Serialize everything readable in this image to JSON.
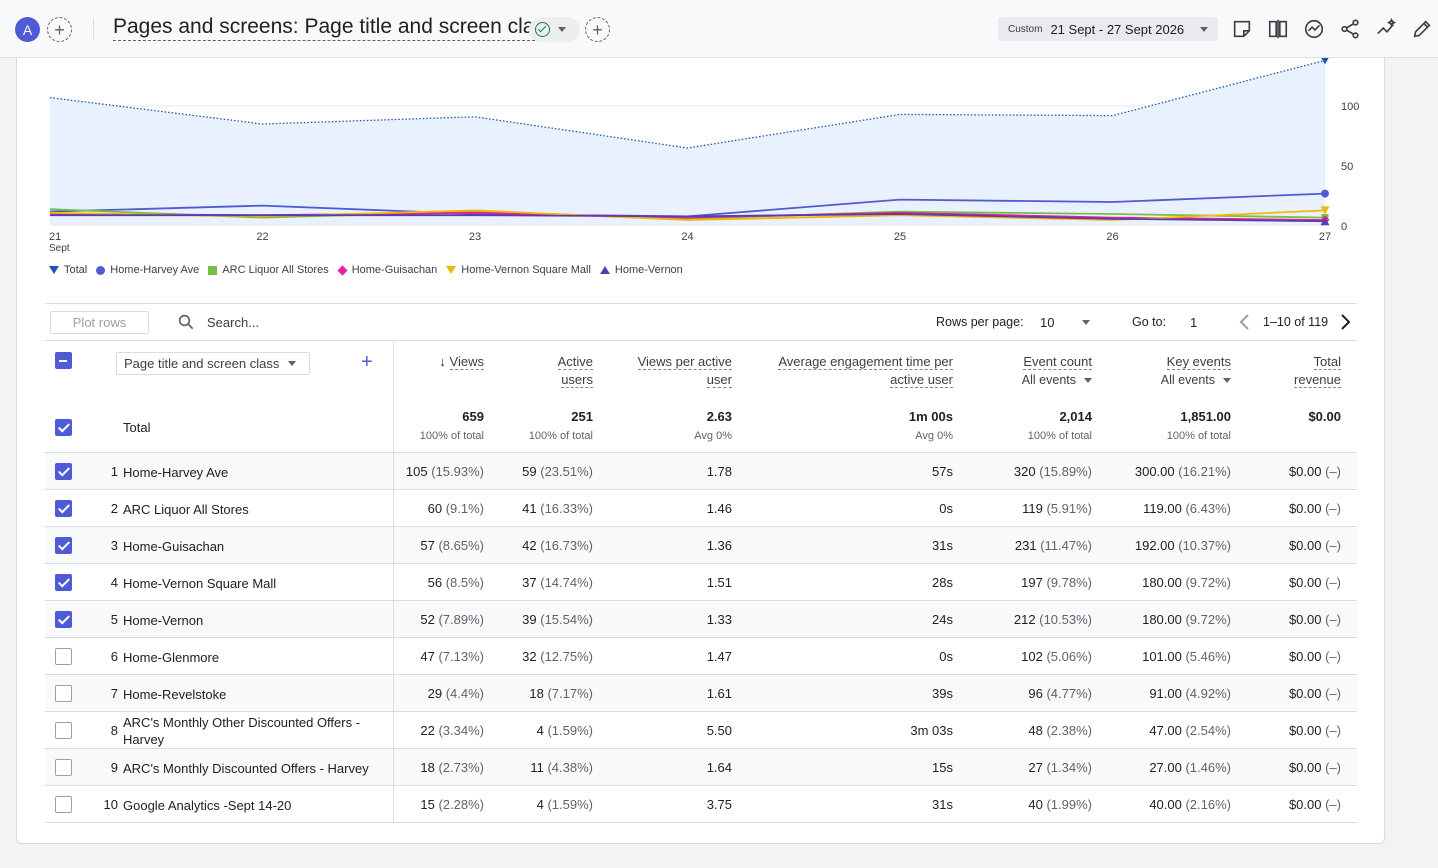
{
  "topbar": {
    "avatar_letter": "A",
    "title": "Pages and screens: Page title and screen class",
    "date_range_label": "Custom",
    "date_range_value": "21 Sept - 27 Sept 2026"
  },
  "chart_data": {
    "type": "line",
    "x": [
      "21",
      "22",
      "23",
      "24",
      "25",
      "26",
      "27"
    ],
    "x_sublabel": "Sept",
    "y_ticks": [
      "100",
      "50",
      "0"
    ],
    "ylim": [
      0,
      140
    ],
    "grid": true,
    "legend_position": "bottom-left",
    "series": [
      {
        "name": "Total",
        "color": "#1a56b0",
        "area": true,
        "values": [
          107,
          85,
          91,
          65,
          93,
          92,
          138
        ]
      },
      {
        "name": "Home-Harvey Ave",
        "color": "#4f5bd5",
        "values": [
          12,
          17,
          10,
          8,
          22,
          20,
          27
        ]
      },
      {
        "name": "ARC Liquor All Stores",
        "color": "#76c043",
        "values": [
          14,
          7,
          12,
          6,
          12,
          10,
          7
        ]
      },
      {
        "name": "Home-Guisachan",
        "color": "#e0239c",
        "values": [
          10,
          9,
          11,
          7,
          11,
          7,
          5
        ]
      },
      {
        "name": "Home-Vernon Square Mall",
        "color": "#f5b800",
        "values": [
          11,
          8,
          13,
          5,
          9,
          5,
          13
        ]
      },
      {
        "name": "Home-Vernon",
        "color": "#5b3ab3",
        "values": [
          9,
          9,
          9,
          8,
          10,
          6,
          4
        ]
      }
    ]
  },
  "toolbar": {
    "plot_rows_label": "Plot rows",
    "search_placeholder": "Search...",
    "rows_per_page_label": "Rows per page:",
    "rows_per_page_value": "10",
    "goto_label": "Go to:",
    "goto_value": "1",
    "pagination_info": "1–10 of 119"
  },
  "table": {
    "dimension_label": "Page title and screen class",
    "columns": [
      {
        "l1": "Views",
        "l2": "",
        "sortable": true
      },
      {
        "l1": "Active",
        "l2": "users"
      },
      {
        "l1": "Views per active",
        "l2": "user"
      },
      {
        "l1": "Average engagement time per",
        "l2": "active user"
      },
      {
        "l1": "Event count",
        "l2": "All events"
      },
      {
        "l1": "Key events",
        "l2": "All events"
      },
      {
        "l1": "Total",
        "l2": "revenue"
      }
    ],
    "total": {
      "label": "Total",
      "values": [
        "659",
        "251",
        "2.63",
        "1m 00s",
        "2,014",
        "1,851.00",
        "$0.00"
      ],
      "subs": [
        "100% of total",
        "100% of total",
        "Avg 0%",
        "Avg 0%",
        "100% of total",
        "100% of total",
        ""
      ]
    },
    "rows": [
      {
        "idx": "1",
        "name": "Home-Harvey Ave",
        "checked": true,
        "cells": [
          [
            "105",
            "(15.93%)"
          ],
          [
            "59",
            "(23.51%)"
          ],
          [
            "1.78",
            ""
          ],
          [
            "57s",
            ""
          ],
          [
            "320",
            "(15.89%)"
          ],
          [
            "300.00",
            "(16.21%)"
          ],
          [
            "$0.00",
            "(–)"
          ]
        ]
      },
      {
        "idx": "2",
        "name": "ARC Liquor All Stores",
        "checked": true,
        "cells": [
          [
            "60",
            "(9.1%)"
          ],
          [
            "41",
            "(16.33%)"
          ],
          [
            "1.46",
            ""
          ],
          [
            "0s",
            ""
          ],
          [
            "119",
            "(5.91%)"
          ],
          [
            "119.00",
            "(6.43%)"
          ],
          [
            "$0.00",
            "(–)"
          ]
        ]
      },
      {
        "idx": "3",
        "name": "Home-Guisachan",
        "checked": true,
        "cells": [
          [
            "57",
            "(8.65%)"
          ],
          [
            "42",
            "(16.73%)"
          ],
          [
            "1.36",
            ""
          ],
          [
            "31s",
            ""
          ],
          [
            "231",
            "(11.47%)"
          ],
          [
            "192.00",
            "(10.37%)"
          ],
          [
            "$0.00",
            "(–)"
          ]
        ]
      },
      {
        "idx": "4",
        "name": "Home-Vernon Square Mall",
        "checked": true,
        "cells": [
          [
            "56",
            "(8.5%)"
          ],
          [
            "37",
            "(14.74%)"
          ],
          [
            "1.51",
            ""
          ],
          [
            "28s",
            ""
          ],
          [
            "197",
            "(9.78%)"
          ],
          [
            "180.00",
            "(9.72%)"
          ],
          [
            "$0.00",
            "(–)"
          ]
        ]
      },
      {
        "idx": "5",
        "name": "Home-Vernon",
        "checked": true,
        "cells": [
          [
            "52",
            "(7.89%)"
          ],
          [
            "39",
            "(15.54%)"
          ],
          [
            "1.33",
            ""
          ],
          [
            "24s",
            ""
          ],
          [
            "212",
            "(10.53%)"
          ],
          [
            "180.00",
            "(9.72%)"
          ],
          [
            "$0.00",
            "(–)"
          ]
        ]
      },
      {
        "idx": "6",
        "name": "Home-Glenmore",
        "checked": false,
        "cells": [
          [
            "47",
            "(7.13%)"
          ],
          [
            "32",
            "(12.75%)"
          ],
          [
            "1.47",
            ""
          ],
          [
            "0s",
            ""
          ],
          [
            "102",
            "(5.06%)"
          ],
          [
            "101.00",
            "(5.46%)"
          ],
          [
            "$0.00",
            "(–)"
          ]
        ]
      },
      {
        "idx": "7",
        "name": "Home-Revelstoke",
        "checked": false,
        "cells": [
          [
            "29",
            "(4.4%)"
          ],
          [
            "18",
            "(7.17%)"
          ],
          [
            "1.61",
            ""
          ],
          [
            "39s",
            ""
          ],
          [
            "96",
            "(4.77%)"
          ],
          [
            "91.00",
            "(4.92%)"
          ],
          [
            "$0.00",
            "(–)"
          ]
        ]
      },
      {
        "idx": "8",
        "name": "ARC's Monthly Other Discounted Offers - Harvey",
        "checked": false,
        "cells": [
          [
            "22",
            "(3.34%)"
          ],
          [
            "4",
            "(1.59%)"
          ],
          [
            "5.50",
            ""
          ],
          [
            "3m 03s",
            ""
          ],
          [
            "48",
            "(2.38%)"
          ],
          [
            "47.00",
            "(2.54%)"
          ],
          [
            "$0.00",
            "(–)"
          ]
        ]
      },
      {
        "idx": "9",
        "name": "ARC's Monthly Discounted Offers - Harvey",
        "checked": false,
        "cells": [
          [
            "18",
            "(2.73%)"
          ],
          [
            "11",
            "(4.38%)"
          ],
          [
            "1.64",
            ""
          ],
          [
            "15s",
            ""
          ],
          [
            "27",
            "(1.34%)"
          ],
          [
            "27.00",
            "(1.46%)"
          ],
          [
            "$0.00",
            "(–)"
          ]
        ]
      },
      {
        "idx": "10",
        "name": "Google Analytics -Sept 14-20",
        "checked": false,
        "cells": [
          [
            "15",
            "(2.28%)"
          ],
          [
            "4",
            "(1.59%)"
          ],
          [
            "3.75",
            ""
          ],
          [
            "31s",
            ""
          ],
          [
            "40",
            "(1.99%)"
          ],
          [
            "40.00",
            "(2.16%)"
          ],
          [
            "$0.00",
            "(–)"
          ]
        ]
      }
    ]
  }
}
